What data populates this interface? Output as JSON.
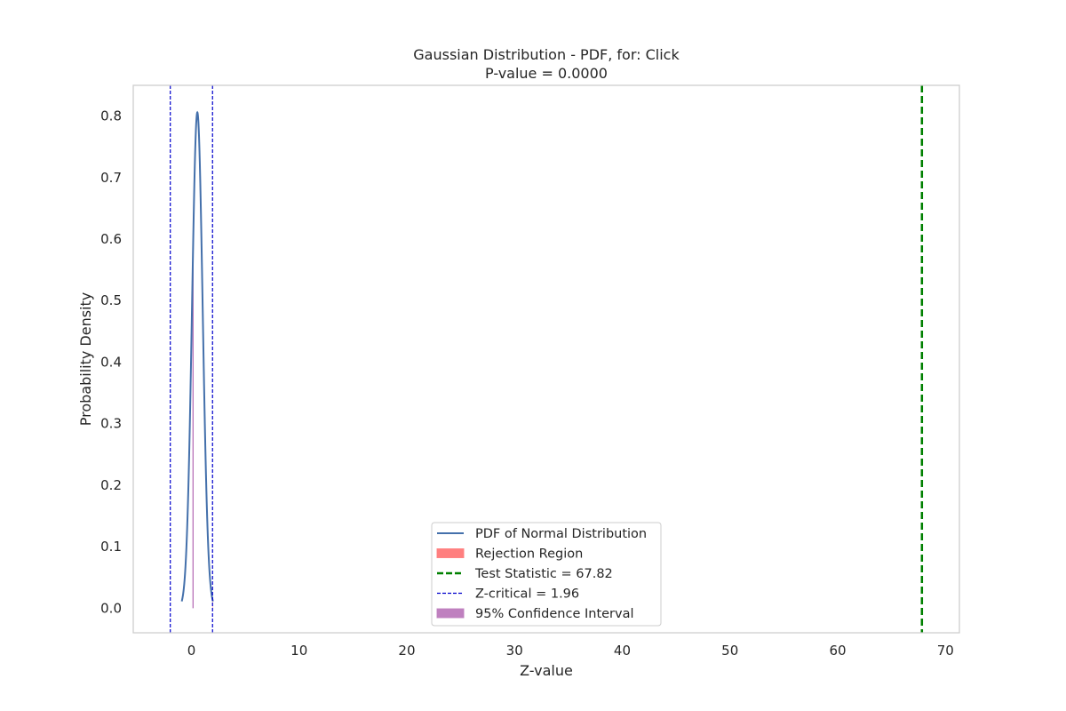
{
  "chart_data": {
    "type": "line",
    "title": "Gaussian Distribution - PDF, for: Click",
    "subtitle": "P-value = 0.0000",
    "xlabel": "Z-value",
    "ylabel": "Probability Density",
    "xlim": [
      -5.4,
      71.3
    ],
    "ylim": [
      -0.04,
      0.85
    ],
    "xticks": [
      0,
      10,
      20,
      30,
      40,
      50,
      60,
      70
    ],
    "yticks": [
      0.0,
      0.1,
      0.2,
      0.3,
      0.4,
      0.5,
      0.6,
      0.7,
      0.8
    ],
    "grid": false,
    "legend_position": "lower center",
    "pdf": {
      "mean": 0.55,
      "std": 0.495,
      "x_start": -0.9,
      "x_end": 2.0,
      "peak": 0.806
    },
    "test_statistic": 67.82,
    "z_critical": 1.96,
    "z_critical_lines": [
      -1.96,
      1.96
    ],
    "rejection_region": [
      1.96,
      2.0
    ],
    "confidence_interval_line": 0.15,
    "series": [
      {
        "name": "PDF of Normal Distribution",
        "style": "solid",
        "color": "#4470ab"
      },
      {
        "name": "Rejection Region",
        "style": "fill",
        "color": "#ff7f7f"
      },
      {
        "name": "Test Statistic = 67.82",
        "style": "dashed-thick",
        "color": "#008000"
      },
      {
        "name": "Z-critical = 1.96",
        "style": "dashed",
        "color": "#0000cc"
      },
      {
        "name": "95% Confidence Interval",
        "style": "fill",
        "color": "#bf80bf"
      }
    ]
  }
}
